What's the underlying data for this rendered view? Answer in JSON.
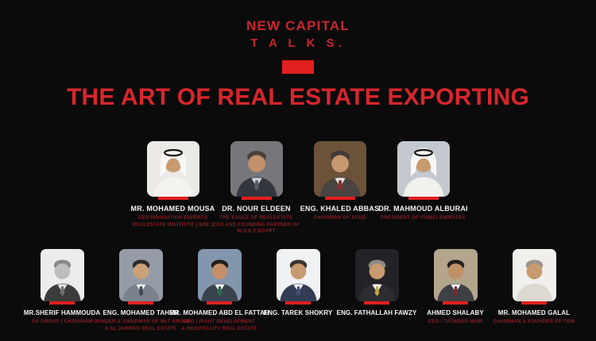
{
  "colors": {
    "background": "#0b0b0b",
    "accent_red": "#e2201f",
    "brand_red": "#c9262c",
    "title_red": "#d8262c",
    "name_white": "#f5f5f5",
    "subtitle_red": "#8f1d22"
  },
  "header": {
    "brand_line1": "NEW CAPITAL",
    "brand_line2": "T A L K S."
  },
  "title": "THE ART OF REAL ESTATE EXPORTING",
  "rows": [
    {
      "speakers": [
        {
          "name": "MR. MOHAMED MOUSA",
          "title_lines": [
            "CEO INNOVATION EXPERTS",
            "REALESTATE INSTITUTE ( ERE )"
          ],
          "photo": {
            "bg": "#eceae6",
            "skin": "#c79a6f",
            "hair": "#4a4038",
            "attire": "#f4f2ee",
            "shirt": "#f4f2ee",
            "tie": null,
            "headwear": true
          }
        },
        {
          "name": "DR. NOUR ELDEEN",
          "title_lines": [
            "THE EAGLE OF REALESTATE",
            "CEO AND FOUNDING PARTNER OF",
            "W.R.E.F EGYPT"
          ],
          "photo": {
            "bg": "#77767b",
            "skin": "#c2906a",
            "hair": "#4a4038",
            "attire": "#32363e",
            "shirt": "#cfd4da",
            "tie": "#555c66",
            "headwear": false
          }
        },
        {
          "name": "ENG. KHALED  ABBAS",
          "title_lines": [
            "CHAIRMAN OF ACUD"
          ],
          "photo": {
            "bg": "#6b5239",
            "skin": "#c5986f",
            "hair": "#3f3a38",
            "attire": "#4a4440",
            "shirt": "#e9e6e0",
            "tie": "#8d2f2f",
            "headwear": false
          }
        },
        {
          "name": "DR. MAHMOUD ALBURAI",
          "title_lines": [
            "PRESIDENT OF FIABCI EMIRATES"
          ],
          "photo": {
            "bg": "#c3c9cf",
            "skin": "#c79a6f",
            "hair": "#4a4038",
            "attire": "#f2f1ee",
            "shirt": "#f2f1ee",
            "tie": null,
            "headwear": true
          }
        }
      ]
    },
    {
      "speakers": [
        {
          "name": "MR.SHERIF HAMMOUDA",
          "title_lines": [
            "GV GROUP | CHAIRMAN"
          ],
          "photo": {
            "bg": "#ececec",
            "skin": "#bdbdbd",
            "hair": "#8a8a8a",
            "attire": "#3c3c3c",
            "shirt": "#e6e6e6",
            "tie": "#6f6f6f",
            "headwear": false
          }
        },
        {
          "name": "ENG. MOHAMED TAHER",
          "title_lines": [
            "FOUNDER & CHAIRMAN OF MLT GROUP",
            "& AL JARWAN REAL ESTATE"
          ],
          "photo": {
            "bg": "#959ca8",
            "skin": "#caa27a",
            "hair": "#2f2a26",
            "attire": "#7b828e",
            "shirt": "#eef0f2",
            "tie": "#3c4654",
            "headwear": false
          }
        },
        {
          "name": "MR. MOHAMED ABD EL FATTAH",
          "title_lines": [
            "CEO | RIGHT DEVELOPMENT",
            "& HOSPITALITY REAL ESTATE"
          ],
          "photo": {
            "bg": "#8396ad",
            "skin": "#c2906a",
            "hair": "#241f1c",
            "attire": "#3a4250",
            "shirt": "#ffffff",
            "tie": "#2e6b4f",
            "headwear": false
          }
        },
        {
          "name": "ENG. TAREK SHOKRY",
          "title_lines": [],
          "photo": {
            "bg": "#f0f1f3",
            "skin": "#c79a6f",
            "hair": "#3b3430",
            "attire": "#343c55",
            "shirt": "#ffffff",
            "tie": "#44507a",
            "headwear": false
          }
        },
        {
          "name": "ENG. FATHALLAH FAWZY",
          "title_lines": [],
          "photo": {
            "bg": "#232327",
            "skin": "#c79a6f",
            "hair": "#8e8a84",
            "attire": "#2c2c31",
            "shirt": "#ffffff",
            "tie": "#c9a53c",
            "headwear": false
          }
        },
        {
          "name": "AHMED SHALABY",
          "title_lines": [
            "CEO / TATWEER MISR"
          ],
          "photo": {
            "bg": "#b4a68c",
            "skin": "#c09068",
            "hair": "#241f1c",
            "attire": "#3f3f46",
            "shirt": "#ffffff",
            "tie": "#7a2e35",
            "headwear": false
          }
        },
        {
          "name": "MR. MOHAMED GALAL",
          "title_lines": [
            "CHAIRMAN & FOUNDER OF TGM"
          ],
          "photo": {
            "bg": "#f1efec",
            "skin": "#c79a6f",
            "hair": "#9a948c",
            "attire": "#ded9d0",
            "shirt": "#ffffff",
            "tie": null,
            "headwear": false
          }
        }
      ]
    }
  ]
}
